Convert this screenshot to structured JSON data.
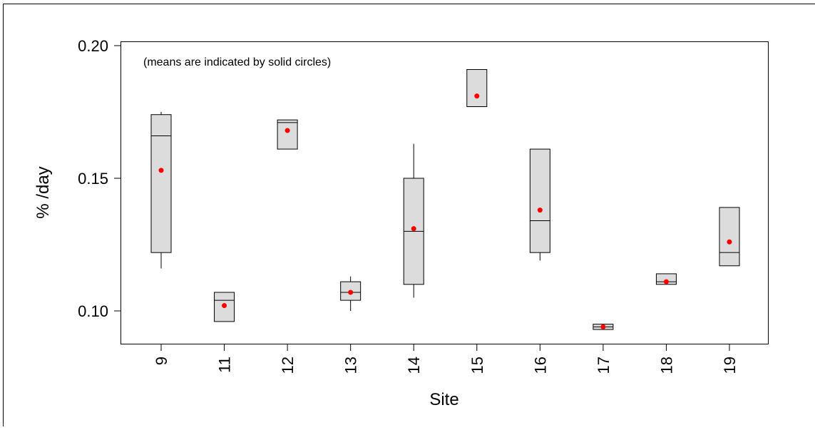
{
  "chart_data": {
    "type": "box",
    "annotation": "(means are indicated by solid circles)",
    "xlabel": "Site",
    "ylabel": "% /day",
    "ylim": [
      0.088,
      0.2
    ],
    "yticks": [
      "0.20",
      "0.15",
      "0.10"
    ],
    "ytick_values": [
      0.2,
      0.15,
      0.1
    ],
    "grid": false,
    "mean_marker_color": "#ff0000",
    "box_fill": "#dcdcdc",
    "categories": [
      "9",
      "11",
      "12",
      "13",
      "14",
      "15",
      "16",
      "17",
      "18",
      "19"
    ],
    "boxes": [
      {
        "site": "9",
        "whisker_low": 0.116,
        "q1": 0.122,
        "median": 0.166,
        "q3": 0.174,
        "whisker_high": 0.175,
        "mean": 0.153
      },
      {
        "site": "11",
        "whisker_low": 0.096,
        "q1": 0.096,
        "median": 0.104,
        "q3": 0.107,
        "whisker_high": 0.107,
        "mean": 0.102
      },
      {
        "site": "12",
        "whisker_low": 0.161,
        "q1": 0.161,
        "median": 0.171,
        "q3": 0.172,
        "whisker_high": 0.172,
        "mean": 0.168
      },
      {
        "site": "13",
        "whisker_low": 0.1,
        "q1": 0.104,
        "median": 0.107,
        "q3": 0.111,
        "whisker_high": 0.113,
        "mean": 0.107
      },
      {
        "site": "14",
        "whisker_low": 0.105,
        "q1": 0.11,
        "median": 0.13,
        "q3": 0.15,
        "whisker_high": 0.163,
        "mean": 0.131
      },
      {
        "site": "15",
        "whisker_low": 0.177,
        "q1": 0.177,
        "median": 0.177,
        "q3": 0.191,
        "whisker_high": 0.191,
        "mean": 0.181
      },
      {
        "site": "16",
        "whisker_low": 0.119,
        "q1": 0.122,
        "median": 0.134,
        "q3": 0.161,
        "whisker_high": 0.161,
        "mean": 0.138
      },
      {
        "site": "17",
        "whisker_low": 0.093,
        "q1": 0.093,
        "median": 0.094,
        "q3": 0.095,
        "whisker_high": 0.095,
        "mean": 0.094
      },
      {
        "site": "18",
        "whisker_low": 0.11,
        "q1": 0.11,
        "median": 0.111,
        "q3": 0.114,
        "whisker_high": 0.114,
        "mean": 0.111
      },
      {
        "site": "19",
        "whisker_low": 0.117,
        "q1": 0.117,
        "median": 0.122,
        "q3": 0.139,
        "whisker_high": 0.139,
        "mean": 0.126
      }
    ]
  }
}
